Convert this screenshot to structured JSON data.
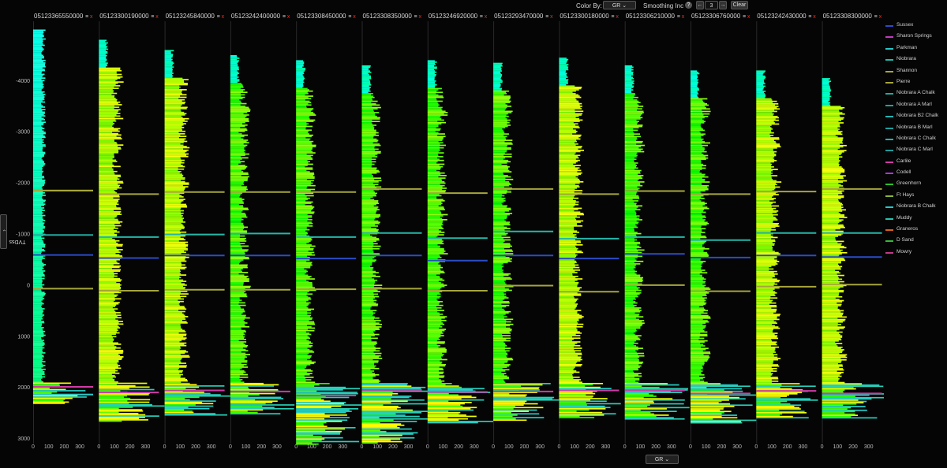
{
  "toolbar": {
    "color_by_label": "Color By:",
    "color_by_value": "GR",
    "smoothing_label": "Smoothing Inc",
    "help_icon": "?",
    "smoothing_value": "3",
    "decrement_glyph": "←",
    "increment_glyph": "→",
    "clear_label": "Clear"
  },
  "y_axis_toggle_label": "TVDss",
  "bottom_curve_select": "GR",
  "colors": {
    "background": "#050505",
    "low_gr": "#00e0ff",
    "mid_gr": "#22e02a",
    "high_gr": "#ffff00",
    "remove_x": "#e0342a"
  },
  "chart_data": {
    "type": "well-log-cross-section",
    "curve": "GR",
    "y_axis": {
      "label": "TVDss",
      "ticks": [
        -4000,
        -3000,
        -2000,
        -1000,
        0,
        1000,
        2000,
        3000
      ],
      "range": [
        -5100,
        3100
      ],
      "inverted": true
    },
    "x_axis": {
      "ticks": [
        0,
        100,
        200,
        300
      ],
      "range": [
        0,
        330
      ]
    },
    "wells": [
      {
        "name": "05123365550000",
        "top": -5000,
        "bottom": 2300,
        "color_mode": "cyan",
        "markers": [
          {
            "formation": "Pierre",
            "depth": -1850
          },
          {
            "formation": "Shannon",
            "depth": -1850
          },
          {
            "formation": "Niobrara A Chalk",
            "depth": -980
          },
          {
            "formation": "Sussex",
            "depth": -590
          },
          {
            "formation": "Pierre",
            "depth": 70
          },
          {
            "formation": "Carlile",
            "depth": 1990
          },
          {
            "formation": "Niobrara B Chalk",
            "depth": 2140
          }
        ]
      },
      {
        "name": "05123300190000",
        "top": -4800,
        "bottom": 2660,
        "color_mode": "yellow",
        "markers": [
          {
            "formation": "Pierre",
            "depth": -1780
          },
          {
            "formation": "Niobrara",
            "depth": -940
          },
          {
            "formation": "Sussex",
            "depth": -530
          },
          {
            "formation": "Pierre",
            "depth": 110
          },
          {
            "formation": "Carlile",
            "depth": 2100
          }
        ]
      },
      {
        "name": "05123245840000",
        "top": -4600,
        "bottom": 2550,
        "color_mode": "yellow",
        "markers": [
          {
            "formation": "Pierre",
            "depth": -1820
          },
          {
            "formation": "Niobrara",
            "depth": -990
          },
          {
            "formation": "Sussex",
            "depth": -580
          },
          {
            "formation": "Pierre",
            "depth": 90
          },
          {
            "formation": "Carlile",
            "depth": 2060
          }
        ]
      },
      {
        "name": "05123242400000",
        "top": -4500,
        "bottom": 2520,
        "color_mode": "green",
        "markers": [
          {
            "formation": "Pierre",
            "depth": -1820
          },
          {
            "formation": "Niobrara",
            "depth": -1010
          },
          {
            "formation": "Sussex",
            "depth": -580
          },
          {
            "formation": "Pierre",
            "depth": 90
          },
          {
            "formation": "Carlile",
            "depth": 2080
          }
        ]
      },
      {
        "name": "05123308450000",
        "top": -4400,
        "bottom": 3100,
        "color_mode": "green",
        "markers": [
          {
            "formation": "Pierre",
            "depth": -1820
          },
          {
            "formation": "Niobrara",
            "depth": -940
          },
          {
            "formation": "Sussex",
            "depth": -520
          },
          {
            "formation": "Pierre",
            "depth": 80
          },
          {
            "formation": "Carlile",
            "depth": 2160
          }
        ]
      },
      {
        "name": "05123308350000",
        "top": -4300,
        "bottom": 3080,
        "color_mode": "green",
        "markers": [
          {
            "formation": "Pierre",
            "depth": -1880
          },
          {
            "formation": "Niobrara",
            "depth": -1020
          },
          {
            "formation": "Sussex",
            "depth": -580
          },
          {
            "formation": "Pierre",
            "depth": 70
          },
          {
            "formation": "Carlile",
            "depth": 2050
          }
        ]
      },
      {
        "name": "05123246920000",
        "top": -4400,
        "bottom": 2700,
        "color_mode": "green",
        "markers": [
          {
            "formation": "Pierre",
            "depth": -1800
          },
          {
            "formation": "Niobrara",
            "depth": -920
          },
          {
            "formation": "Sussex",
            "depth": -480
          },
          {
            "formation": "Pierre",
            "depth": 110
          },
          {
            "formation": "Carlile",
            "depth": 2090
          }
        ]
      },
      {
        "name": "05123293470000",
        "top": -4350,
        "bottom": 2650,
        "color_mode": "green",
        "markers": [
          {
            "formation": "Pierre",
            "depth": -1880
          },
          {
            "formation": "Niobrara",
            "depth": -1050
          },
          {
            "formation": "Sussex",
            "depth": -580
          },
          {
            "formation": "Pierre",
            "depth": 10
          },
          {
            "formation": "Carlile",
            "depth": 2080
          }
        ]
      },
      {
        "name": "05123300180000",
        "top": -4450,
        "bottom": 2600,
        "color_mode": "yellow",
        "markers": [
          {
            "formation": "Pierre",
            "depth": -1780
          },
          {
            "formation": "Niobrara",
            "depth": -910
          },
          {
            "formation": "Sussex",
            "depth": -520
          },
          {
            "formation": "Pierre",
            "depth": 130
          },
          {
            "formation": "Carlile",
            "depth": 2060
          }
        ]
      },
      {
        "name": "05123306210000",
        "top": -4300,
        "bottom": 2620,
        "color_mode": "green",
        "markers": [
          {
            "formation": "Pierre",
            "depth": -1840
          },
          {
            "formation": "Niobrara",
            "depth": -940
          },
          {
            "formation": "Sussex",
            "depth": -610
          },
          {
            "formation": "Pierre",
            "depth": 0
          },
          {
            "formation": "Carlile",
            "depth": 2060
          }
        ]
      },
      {
        "name": "05123306760000",
        "top": -4200,
        "bottom": 2700,
        "color_mode": "green",
        "markers": [
          {
            "formation": "Pierre",
            "depth": -1780
          },
          {
            "formation": "Niobrara",
            "depth": -880
          },
          {
            "formation": "Sussex",
            "depth": -540
          },
          {
            "formation": "Pierre",
            "depth": 120
          },
          {
            "formation": "Carlile",
            "depth": 2120
          }
        ]
      },
      {
        "name": "05123242430000",
        "top": -4200,
        "bottom": 2600,
        "color_mode": "yellow",
        "markers": [
          {
            "formation": "Pierre",
            "depth": -1830
          },
          {
            "formation": "Niobrara",
            "depth": -1020
          },
          {
            "formation": "Sussex",
            "depth": -580
          },
          {
            "formation": "Pierre",
            "depth": 30
          },
          {
            "formation": "Carlile",
            "depth": 2070
          }
        ]
      },
      {
        "name": "05123308300000",
        "top": -4050,
        "bottom": 2600,
        "color_mode": "yellow",
        "markers": [
          {
            "formation": "Pierre",
            "depth": -1880
          },
          {
            "formation": "Niobrara",
            "depth": -1020
          },
          {
            "formation": "Sussex",
            "depth": -550
          },
          {
            "formation": "Pierre",
            "depth": -10
          },
          {
            "formation": "Carlile",
            "depth": 2120
          }
        ]
      }
    ],
    "legend": [
      {
        "name": "Sussex",
        "color": "#2b4cc8"
      },
      {
        "name": "Sharon Springs",
        "color": "#c23bc2"
      },
      {
        "name": "Parkman",
        "color": "#27c7c7"
      },
      {
        "name": "Niobrara",
        "color": "#22b8aa"
      },
      {
        "name": "Shannon",
        "color": "#a8a83a"
      },
      {
        "name": "Pierre",
        "color": "#a6a63c"
      },
      {
        "name": "Niobrara A Chalk",
        "color": "#22aaa0"
      },
      {
        "name": "Niobrara A Marl",
        "color": "#1ea69a"
      },
      {
        "name": "Niobrara B2 Chalk",
        "color": "#24b4b4"
      },
      {
        "name": "Niobrara B Marl",
        "color": "#1ea0a0"
      },
      {
        "name": "Niobrara C Chalk",
        "color": "#26b2b2"
      },
      {
        "name": "Niobrara C Marl",
        "color": "#1f9c9c"
      },
      {
        "name": "Carlile",
        "color": "#d23aa8"
      },
      {
        "name": "Codell",
        "color": "#a83ad2"
      },
      {
        "name": "Greenhorn",
        "color": "#2cc02c"
      },
      {
        "name": "Ft Hays",
        "color": "#8ab83a"
      },
      {
        "name": "Niobrara B Chalk",
        "color": "#28c8c8"
      },
      {
        "name": "Muddy",
        "color": "#26c2b0"
      },
      {
        "name": "Graneros",
        "color": "#d8601e"
      },
      {
        "name": "D Sand",
        "color": "#3ab83a"
      },
      {
        "name": "Mowry",
        "color": "#c23a8a"
      }
    ]
  }
}
